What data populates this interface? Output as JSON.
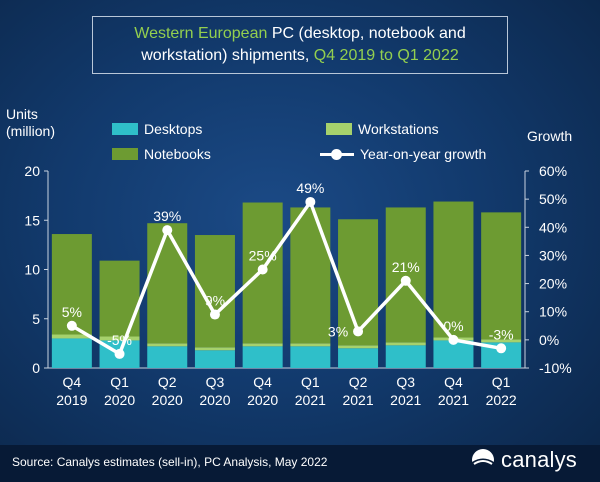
{
  "title": {
    "part1": "Western European",
    "part2": " PC (desktop, notebook and",
    "part3": "workstation) shipments, ",
    "part4": "Q4 2019 to Q1 2022"
  },
  "y_left_title_line1": "Units",
  "y_left_title_line2": "(million)",
  "y_right_title": "Growth",
  "source": "Source: Canalys estimates (sell-in), PC Analysis, May 2022",
  "logo_text": "canalys",
  "colors": {
    "desktops": "#2fbfc9",
    "workstations": "#a6d16c",
    "notebooks": "#6d9b32",
    "growth": "#ffffff"
  },
  "chart_data": {
    "type": "bar",
    "categories": [
      [
        "Q4",
        "2019"
      ],
      [
        "Q1",
        "2020"
      ],
      [
        "Q2",
        "2020"
      ],
      [
        "Q3",
        "2020"
      ],
      [
        "Q4",
        "2020"
      ],
      [
        "Q1",
        "2021"
      ],
      [
        "Q2",
        "2021"
      ],
      [
        "Q3",
        "2021"
      ],
      [
        "Q4",
        "2021"
      ],
      [
        "Q1",
        "2022"
      ]
    ],
    "series": [
      {
        "name": "Desktops",
        "key": "desktops",
        "values": [
          3.0,
          2.8,
          2.2,
          1.8,
          2.2,
          2.2,
          2.0,
          2.3,
          2.8,
          2.6
        ]
      },
      {
        "name": "Workstations",
        "key": "workstations",
        "values": [
          0.4,
          0.4,
          0.3,
          0.3,
          0.3,
          0.3,
          0.3,
          0.3,
          0.3,
          0.3
        ]
      },
      {
        "name": "Notebooks",
        "key": "notebooks",
        "values": [
          10.2,
          7.7,
          12.2,
          11.4,
          14.3,
          13.8,
          12.8,
          13.7,
          13.8,
          12.9
        ]
      }
    ],
    "growth": {
      "name": "Year-on-year growth",
      "values": [
        5,
        -5,
        39,
        9,
        25,
        49,
        3,
        21,
        0,
        -3
      ],
      "labels": [
        "5%",
        "-5%",
        "39%",
        "9%",
        "25%",
        "49%",
        "3%",
        "21%",
        "0%",
        "-3%"
      ]
    },
    "y_left": {
      "min": 0,
      "max": 20,
      "ticks": [
        "0",
        "5",
        "10",
        "15",
        "20"
      ]
    },
    "y_right": {
      "min": -10,
      "max": 60,
      "ticks": [
        "-10%",
        "0%",
        "10%",
        "20%",
        "30%",
        "40%",
        "50%",
        "60%"
      ]
    },
    "legend_position": "top"
  }
}
